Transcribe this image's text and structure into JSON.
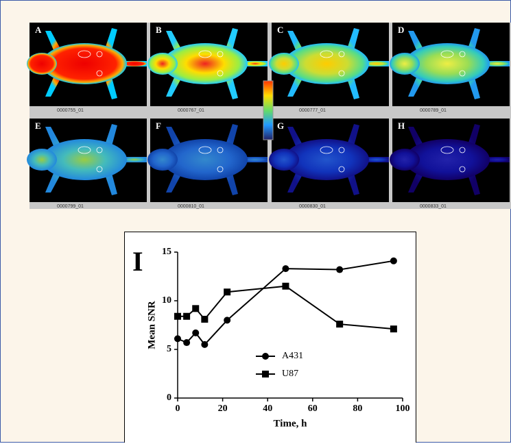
{
  "panels": [
    {
      "label": "A",
      "caption": "0000755_01"
    },
    {
      "label": "B",
      "caption": "0000767_01"
    },
    {
      "label": "C",
      "caption": "0000777_01"
    },
    {
      "label": "D",
      "caption": "0000789_01"
    },
    {
      "label": "E",
      "caption": "0000799_01"
    },
    {
      "label": "F",
      "caption": "0000810_01"
    },
    {
      "label": "G",
      "caption": "0000830_01"
    },
    {
      "label": "H",
      "caption": "0000833_01"
    }
  ],
  "chart_data": {
    "type": "line",
    "annotation": "I",
    "xlabel": "Time, h",
    "ylabel": "Mean SNR",
    "x": [
      0,
      4,
      8,
      12,
      22,
      48,
      72,
      96
    ],
    "series": [
      {
        "name": "A431",
        "color": "#000000",
        "marker": "circle",
        "values": [
          6.1,
          5.7,
          6.7,
          5.5,
          8.0,
          13.3,
          13.2,
          14.1
        ]
      },
      {
        "name": "U87",
        "color": "#000000",
        "marker": "square",
        "values": [
          8.4,
          8.4,
          9.2,
          8.1,
          10.9,
          11.5,
          7.6,
          7.1
        ]
      }
    ],
    "xlim": [
      0,
      100
    ],
    "xticks": [
      0,
      20,
      40,
      60,
      80,
      100
    ],
    "ylim": [
      0,
      15
    ],
    "yticks": [
      0,
      5,
      10,
      15
    ],
    "grid": false
  }
}
